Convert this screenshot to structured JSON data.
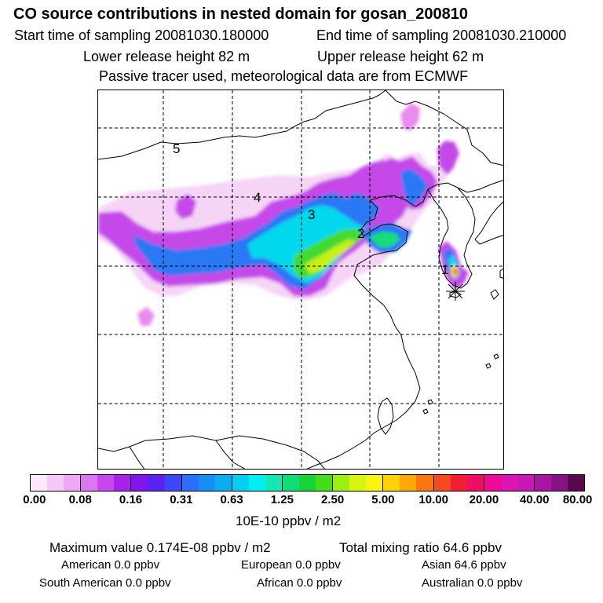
{
  "title": "CO  source contributions in nested domain for gosan_200810",
  "header": {
    "start_label": "Start time of sampling 20081030.180000",
    "end_label": "End time of sampling 20081030.210000",
    "lower_label": "Lower release height   82 m",
    "upper_label": "Upper release height   62 m",
    "tracer_note": "Passive tracer used, meteorological data are from ECMWF"
  },
  "map": {
    "labels": [
      "5",
      "4",
      "3",
      "2",
      "1"
    ]
  },
  "colorbar": {
    "colors": [
      "#fbeafb",
      "#f5c8f5",
      "#efa8f3",
      "#dc78ee",
      "#c746ee",
      "#a822ea",
      "#8314ee",
      "#5a22f2",
      "#3c46fa",
      "#2c6ef8",
      "#168ef4",
      "#0aacf2",
      "#06cef0",
      "#04eef0",
      "#12e8b2",
      "#12dc7a",
      "#18d23a",
      "#46dc18",
      "#9af010",
      "#d8f410",
      "#f8f410",
      "#fed208",
      "#fca808",
      "#fa7612",
      "#f64a22",
      "#f21e34",
      "#f00e62",
      "#ee0a92",
      "#dc14b4",
      "#c818b8",
      "#a616a0",
      "#861286",
      "#5a084e"
    ],
    "ticks": [
      "0.00",
      "0.08",
      "0.16",
      "0.31",
      "0.63",
      "1.25",
      "2.50",
      "5.00",
      "10.00",
      "20.00",
      "40.00",
      "80.00"
    ],
    "units": "10E-10 ppbv / m2"
  },
  "stats": {
    "max_label": "Maximum value  0.174E-08 ppbv / m2",
    "total_label": "Total mixing ratio      64.6 ppbv",
    "american": "American       0.0 ppbv",
    "european": "European       0.0 ppbv",
    "asian": "Asian      64.6 ppbv",
    "south_american": "South American       0.0 ppbv",
    "african": "African       0.0 ppbv",
    "australian": "Australian       0.0 ppbv"
  }
}
